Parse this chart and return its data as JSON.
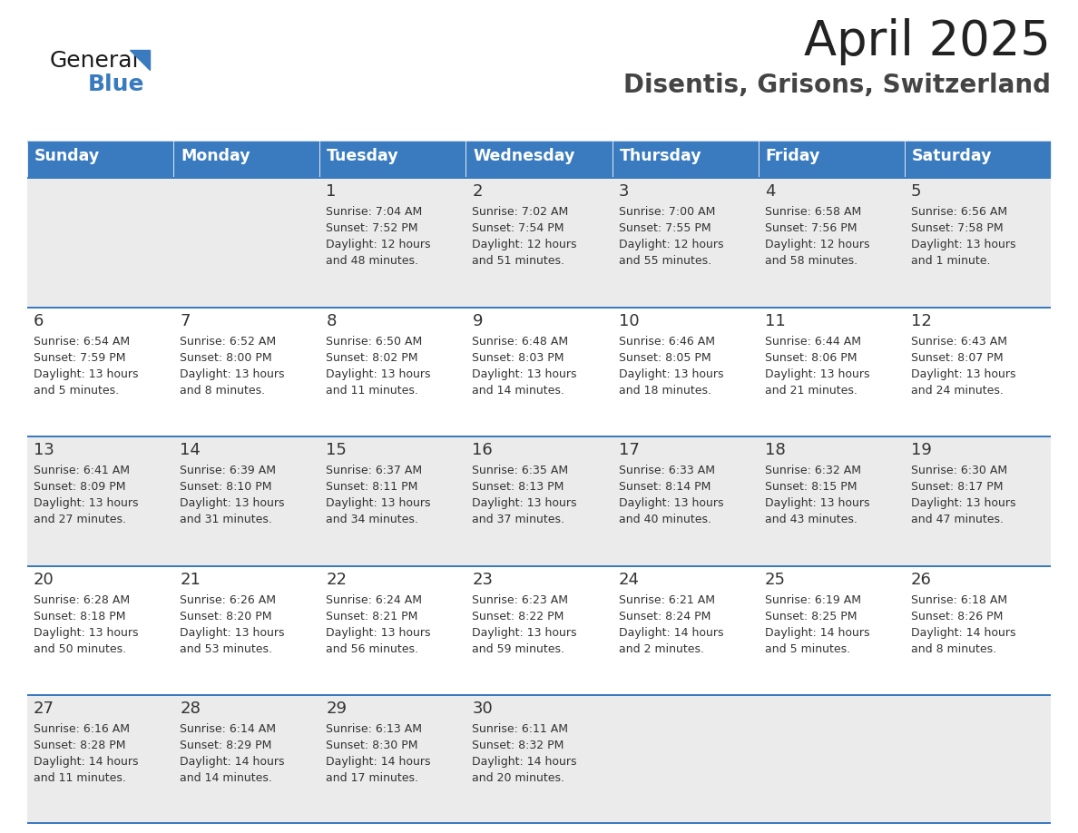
{
  "title": "April 2025",
  "subtitle": "Disentis, Grisons, Switzerland",
  "header_bg_color": "#3a7bbf",
  "header_text_color": "#ffffff",
  "cell_bg_even": "#ebebeb",
  "cell_bg_odd": "#ffffff",
  "border_color": "#3a7bbf",
  "title_color": "#222222",
  "subtitle_color": "#444444",
  "day_number_color": "#333333",
  "cell_text_color": "#333333",
  "days_of_week": [
    "Sunday",
    "Monday",
    "Tuesday",
    "Wednesday",
    "Thursday",
    "Friday",
    "Saturday"
  ],
  "weeks": [
    [
      {
        "day": "",
        "sunrise": "",
        "sunset": "",
        "daylight": ""
      },
      {
        "day": "",
        "sunrise": "",
        "sunset": "",
        "daylight": ""
      },
      {
        "day": "1",
        "sunrise": "Sunrise: 7:04 AM",
        "sunset": "Sunset: 7:52 PM",
        "daylight": "Daylight: 12 hours\nand 48 minutes."
      },
      {
        "day": "2",
        "sunrise": "Sunrise: 7:02 AM",
        "sunset": "Sunset: 7:54 PM",
        "daylight": "Daylight: 12 hours\nand 51 minutes."
      },
      {
        "day": "3",
        "sunrise": "Sunrise: 7:00 AM",
        "sunset": "Sunset: 7:55 PM",
        "daylight": "Daylight: 12 hours\nand 55 minutes."
      },
      {
        "day": "4",
        "sunrise": "Sunrise: 6:58 AM",
        "sunset": "Sunset: 7:56 PM",
        "daylight": "Daylight: 12 hours\nand 58 minutes."
      },
      {
        "day": "5",
        "sunrise": "Sunrise: 6:56 AM",
        "sunset": "Sunset: 7:58 PM",
        "daylight": "Daylight: 13 hours\nand 1 minute."
      }
    ],
    [
      {
        "day": "6",
        "sunrise": "Sunrise: 6:54 AM",
        "sunset": "Sunset: 7:59 PM",
        "daylight": "Daylight: 13 hours\nand 5 minutes."
      },
      {
        "day": "7",
        "sunrise": "Sunrise: 6:52 AM",
        "sunset": "Sunset: 8:00 PM",
        "daylight": "Daylight: 13 hours\nand 8 minutes."
      },
      {
        "day": "8",
        "sunrise": "Sunrise: 6:50 AM",
        "sunset": "Sunset: 8:02 PM",
        "daylight": "Daylight: 13 hours\nand 11 minutes."
      },
      {
        "day": "9",
        "sunrise": "Sunrise: 6:48 AM",
        "sunset": "Sunset: 8:03 PM",
        "daylight": "Daylight: 13 hours\nand 14 minutes."
      },
      {
        "day": "10",
        "sunrise": "Sunrise: 6:46 AM",
        "sunset": "Sunset: 8:05 PM",
        "daylight": "Daylight: 13 hours\nand 18 minutes."
      },
      {
        "day": "11",
        "sunrise": "Sunrise: 6:44 AM",
        "sunset": "Sunset: 8:06 PM",
        "daylight": "Daylight: 13 hours\nand 21 minutes."
      },
      {
        "day": "12",
        "sunrise": "Sunrise: 6:43 AM",
        "sunset": "Sunset: 8:07 PM",
        "daylight": "Daylight: 13 hours\nand 24 minutes."
      }
    ],
    [
      {
        "day": "13",
        "sunrise": "Sunrise: 6:41 AM",
        "sunset": "Sunset: 8:09 PM",
        "daylight": "Daylight: 13 hours\nand 27 minutes."
      },
      {
        "day": "14",
        "sunrise": "Sunrise: 6:39 AM",
        "sunset": "Sunset: 8:10 PM",
        "daylight": "Daylight: 13 hours\nand 31 minutes."
      },
      {
        "day": "15",
        "sunrise": "Sunrise: 6:37 AM",
        "sunset": "Sunset: 8:11 PM",
        "daylight": "Daylight: 13 hours\nand 34 minutes."
      },
      {
        "day": "16",
        "sunrise": "Sunrise: 6:35 AM",
        "sunset": "Sunset: 8:13 PM",
        "daylight": "Daylight: 13 hours\nand 37 minutes."
      },
      {
        "day": "17",
        "sunrise": "Sunrise: 6:33 AM",
        "sunset": "Sunset: 8:14 PM",
        "daylight": "Daylight: 13 hours\nand 40 minutes."
      },
      {
        "day": "18",
        "sunrise": "Sunrise: 6:32 AM",
        "sunset": "Sunset: 8:15 PM",
        "daylight": "Daylight: 13 hours\nand 43 minutes."
      },
      {
        "day": "19",
        "sunrise": "Sunrise: 6:30 AM",
        "sunset": "Sunset: 8:17 PM",
        "daylight": "Daylight: 13 hours\nand 47 minutes."
      }
    ],
    [
      {
        "day": "20",
        "sunrise": "Sunrise: 6:28 AM",
        "sunset": "Sunset: 8:18 PM",
        "daylight": "Daylight: 13 hours\nand 50 minutes."
      },
      {
        "day": "21",
        "sunrise": "Sunrise: 6:26 AM",
        "sunset": "Sunset: 8:20 PM",
        "daylight": "Daylight: 13 hours\nand 53 minutes."
      },
      {
        "day": "22",
        "sunrise": "Sunrise: 6:24 AM",
        "sunset": "Sunset: 8:21 PM",
        "daylight": "Daylight: 13 hours\nand 56 minutes."
      },
      {
        "day": "23",
        "sunrise": "Sunrise: 6:23 AM",
        "sunset": "Sunset: 8:22 PM",
        "daylight": "Daylight: 13 hours\nand 59 minutes."
      },
      {
        "day": "24",
        "sunrise": "Sunrise: 6:21 AM",
        "sunset": "Sunset: 8:24 PM",
        "daylight": "Daylight: 14 hours\nand 2 minutes."
      },
      {
        "day": "25",
        "sunrise": "Sunrise: 6:19 AM",
        "sunset": "Sunset: 8:25 PM",
        "daylight": "Daylight: 14 hours\nand 5 minutes."
      },
      {
        "day": "26",
        "sunrise": "Sunrise: 6:18 AM",
        "sunset": "Sunset: 8:26 PM",
        "daylight": "Daylight: 14 hours\nand 8 minutes."
      }
    ],
    [
      {
        "day": "27",
        "sunrise": "Sunrise: 6:16 AM",
        "sunset": "Sunset: 8:28 PM",
        "daylight": "Daylight: 14 hours\nand 11 minutes."
      },
      {
        "day": "28",
        "sunrise": "Sunrise: 6:14 AM",
        "sunset": "Sunset: 8:29 PM",
        "daylight": "Daylight: 14 hours\nand 14 minutes."
      },
      {
        "day": "29",
        "sunrise": "Sunrise: 6:13 AM",
        "sunset": "Sunset: 8:30 PM",
        "daylight": "Daylight: 14 hours\nand 17 minutes."
      },
      {
        "day": "30",
        "sunrise": "Sunrise: 6:11 AM",
        "sunset": "Sunset: 8:32 PM",
        "daylight": "Daylight: 14 hours\nand 20 minutes."
      },
      {
        "day": "",
        "sunrise": "",
        "sunset": "",
        "daylight": ""
      },
      {
        "day": "",
        "sunrise": "",
        "sunset": "",
        "daylight": ""
      },
      {
        "day": "",
        "sunrise": "",
        "sunset": "",
        "daylight": ""
      }
    ]
  ]
}
